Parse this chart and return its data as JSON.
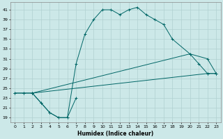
{
  "xlabel": "Humidex (Indice chaleur)",
  "background_color": "#cce8e8",
  "grid_color": "#b0d0d0",
  "line_color": "#006666",
  "xlim": [
    -0.5,
    23.5
  ],
  "ylim": [
    18,
    42.5
  ],
  "xticks": [
    0,
    1,
    2,
    3,
    4,
    5,
    6,
    7,
    8,
    9,
    10,
    11,
    12,
    13,
    14,
    15,
    16,
    17,
    18,
    19,
    20,
    21,
    22,
    23
  ],
  "yticks": [
    19,
    21,
    23,
    25,
    27,
    29,
    31,
    33,
    35,
    37,
    39,
    41
  ],
  "lines": [
    {
      "x": [
        0,
        1,
        2,
        3,
        4,
        5,
        6,
        7,
        8,
        9,
        10,
        11,
        12,
        13,
        14,
        15,
        16,
        17,
        18,
        20,
        21,
        22,
        23
      ],
      "y": [
        24,
        24,
        24,
        22,
        20,
        19,
        19,
        30,
        36,
        39,
        41,
        41,
        40,
        41,
        41.5,
        40,
        39,
        38,
        35,
        32,
        30,
        28,
        28
      ]
    },
    {
      "x": [
        0,
        1,
        2,
        3,
        4,
        5,
        6,
        7
      ],
      "y": [
        24,
        24,
        24,
        22,
        20,
        19,
        19,
        23
      ]
    },
    {
      "x": [
        2,
        20,
        22,
        23
      ],
      "y": [
        24,
        32,
        31,
        28
      ]
    },
    {
      "x": [
        2,
        22,
        23
      ],
      "y": [
        24,
        28,
        28
      ]
    }
  ]
}
